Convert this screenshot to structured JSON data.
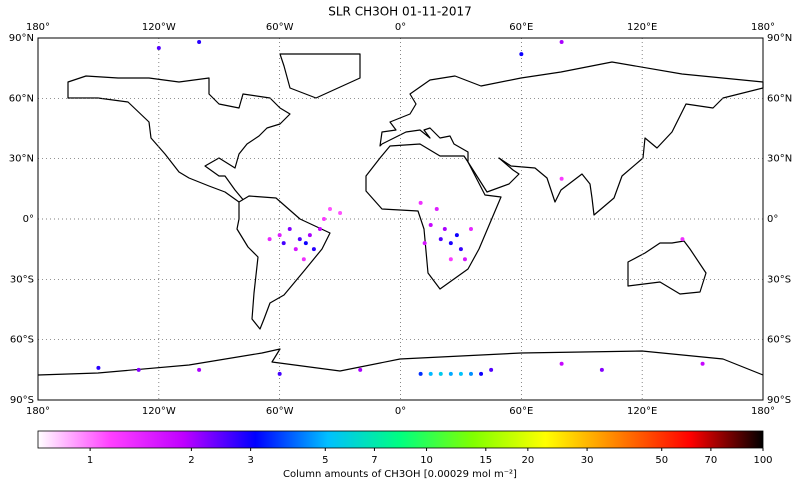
{
  "chart_data": {
    "type": "scatter",
    "title": "SLR CH3OH 01-11-2017",
    "xlim": [
      -180,
      180
    ],
    "ylim": [
      -90,
      90
    ],
    "xticks": [
      {
        "value": -180,
        "label": "180°"
      },
      {
        "value": -120,
        "label": "120°W"
      },
      {
        "value": -60,
        "label": "60°W"
      },
      {
        "value": 0,
        "label": "0°"
      },
      {
        "value": 60,
        "label": "60°E"
      },
      {
        "value": 120,
        "label": "120°E"
      },
      {
        "value": 180,
        "label": "180°"
      }
    ],
    "yticks": [
      {
        "value": 90,
        "label": "90°N"
      },
      {
        "value": 60,
        "label": "60°N"
      },
      {
        "value": 30,
        "label": "30°N"
      },
      {
        "value": 0,
        "label": "0°"
      },
      {
        "value": -30,
        "label": "30°S"
      },
      {
        "value": -60,
        "label": "60°S"
      },
      {
        "value": -90,
        "label": "90°S"
      }
    ],
    "grid": true,
    "x": [
      -55,
      -50,
      -45,
      -40,
      -52,
      -47,
      -58,
      -60,
      -43,
      -38,
      -35,
      -30,
      -65,
      -48,
      20,
      25,
      30,
      22,
      15,
      28,
      18,
      10,
      32,
      35,
      12,
      25,
      15,
      20,
      25,
      30,
      35,
      10,
      40,
      45,
      -150,
      -130,
      -100,
      -60,
      -20,
      80,
      100,
      150,
      -100,
      80,
      60,
      80,
      140,
      -120
    ],
    "y": [
      -5,
      -10,
      -8,
      -5,
      -15,
      -12,
      -12,
      -8,
      -15,
      0,
      5,
      3,
      -10,
      -20,
      -10,
      -12,
      -15,
      -5,
      -3,
      -8,
      5,
      8,
      -20,
      -5,
      -12,
      -20,
      -77,
      -77,
      -77,
      -77,
      -77,
      -77,
      -77,
      -75,
      -74,
      -75,
      -75,
      -77,
      -75,
      -72,
      -75,
      -72,
      88,
      88,
      82,
      20,
      -10,
      85
    ],
    "values": [
      2.2,
      2.5,
      2,
      1.8,
      1.6,
      3,
      2.6,
      1.5,
      2.8,
      1.2,
      1.1,
      1.1,
      1.4,
      1.3,
      2.5,
      2.9,
      2.7,
      2,
      1.8,
      3,
      1.5,
      1.3,
      1.6,
      1.4,
      1.6,
      1.2,
      5,
      5.5,
      4.8,
      5.2,
      4.5,
      3.5,
      3,
      2.5,
      2.8,
      2.2,
      2,
      2.6,
      2,
      1.8,
      2.2,
      1.8,
      2.8,
      2,
      3,
      1.2,
      1.3,
      2.5
    ],
    "colorbar": {
      "label": "Column amounts of CH3OH [0.00029 mol m⁻²]",
      "log": true,
      "lim": [
        0.7,
        100
      ],
      "ticks": [
        1,
        2,
        3,
        5,
        7,
        10,
        15,
        20,
        30,
        50,
        70,
        100
      ],
      "colormap": [
        "#ffffff",
        "#ff40ff",
        "#c000ff",
        "#0000ff",
        "#00c0ff",
        "#00ff80",
        "#80ff00",
        "#ffff00",
        "#ff8000",
        "#ff0000",
        "#000000"
      ]
    }
  }
}
